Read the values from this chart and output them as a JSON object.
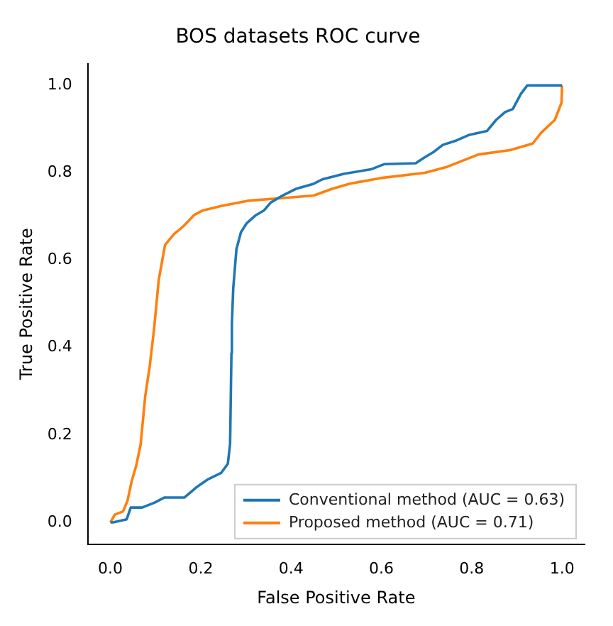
{
  "chart_data": {
    "type": "line",
    "title": "BOS datasets ROC curve",
    "xlabel": "False Positive Rate",
    "ylabel": "True Positive Rate",
    "xlim": [
      -0.05,
      1.05
    ],
    "ylim": [
      -0.05,
      1.05
    ],
    "xticks": [
      {
        "value": 0,
        "label": "0.0"
      },
      0.2,
      0.4,
      0.6,
      0.8,
      {
        "value": 1,
        "label": "1.0"
      }
    ],
    "yticks": [
      {
        "value": 0,
        "label": "0.0"
      },
      0.2,
      0.4,
      0.6,
      0.8,
      {
        "value": 1,
        "label": "1.0"
      }
    ],
    "grid": false,
    "legend": "bottom right",
    "marker": "none",
    "line_style": "solid",
    "series": [
      {
        "name": "Conventional method (AUC = 0.63)",
        "color": "#1f77b4",
        "x": [
          0,
          0.006,
          0.036,
          0.045,
          0.07,
          0.097,
          0.12,
          0.164,
          0.19,
          0.215,
          0.245,
          0.26,
          0.265,
          0.268,
          0.269,
          0.272,
          0.279,
          0.289,
          0.302,
          0.322,
          0.34,
          0.355,
          0.381,
          0.41,
          0.45,
          0.469,
          0.518,
          0.577,
          0.607,
          0.676,
          0.695,
          0.716,
          0.736,
          0.766,
          0.795,
          0.834,
          0.854,
          0.874,
          0.891,
          0.909,
          0.923,
          1.0
        ],
        "values": [
          0,
          0,
          0.007,
          0.034,
          0.034,
          0.045,
          0.057,
          0.057,
          0.08,
          0.098,
          0.113,
          0.134,
          0.18,
          0.387,
          0.455,
          0.536,
          0.625,
          0.664,
          0.685,
          0.703,
          0.714,
          0.732,
          0.748,
          0.763,
          0.775,
          0.785,
          0.798,
          0.808,
          0.82,
          0.822,
          0.835,
          0.848,
          0.864,
          0.874,
          0.887,
          0.896,
          0.921,
          0.939,
          0.946,
          0.981,
          1.0,
          1.0
        ]
      },
      {
        "name": "Proposed method (AUC = 0.71)",
        "color": "#ff7f0e",
        "x": [
          0,
          0.01,
          0.028,
          0.038,
          0.047,
          0.057,
          0.067,
          0.077,
          0.087,
          0.097,
          0.107,
          0.121,
          0.141,
          0.161,
          0.186,
          0.205,
          0.245,
          0.304,
          0.402,
          0.45,
          0.49,
          0.529,
          0.598,
          0.696,
          0.746,
          0.815,
          0.885,
          0.935,
          0.954,
          0.984,
          0.999,
          1.0
        ],
        "values": [
          0,
          0.018,
          0.025,
          0.05,
          0.094,
          0.129,
          0.179,
          0.288,
          0.357,
          0.446,
          0.555,
          0.635,
          0.66,
          0.677,
          0.704,
          0.714,
          0.724,
          0.736,
          0.744,
          0.748,
          0.763,
          0.775,
          0.788,
          0.8,
          0.814,
          0.842,
          0.852,
          0.867,
          0.892,
          0.921,
          0.961,
          1.0
        ]
      }
    ]
  }
}
